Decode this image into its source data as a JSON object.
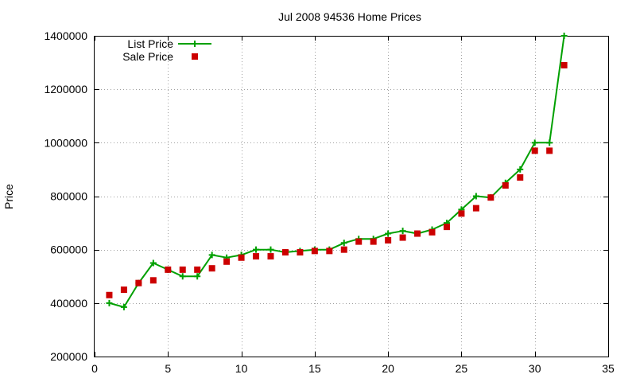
{
  "chart_data": {
    "type": "line",
    "title": "Jul 2008 94536 Home Prices",
    "xlabel": "",
    "ylabel": "Price",
    "xlim": [
      0,
      35
    ],
    "ylim": [
      200000,
      1400000
    ],
    "xticks": [
      0,
      5,
      10,
      15,
      20,
      25,
      30,
      35
    ],
    "yticks": [
      200000,
      400000,
      600000,
      800000,
      1000000,
      1200000,
      1400000
    ],
    "xtick_labels": [
      "0",
      "5",
      "10",
      "15",
      "20",
      "25",
      "30",
      "35"
    ],
    "ytick_labels": [
      "200000",
      "400000",
      "600000",
      "800000",
      "1000000",
      "1200000",
      "1400000"
    ],
    "grid": true,
    "legend_position": "top-left",
    "x": [
      1,
      2,
      3,
      4,
      5,
      6,
      7,
      8,
      9,
      10,
      11,
      12,
      13,
      14,
      15,
      16,
      17,
      18,
      19,
      20,
      21,
      22,
      23,
      24,
      25,
      26,
      27,
      28,
      29,
      30,
      31,
      32
    ],
    "series": [
      {
        "name": "List Price",
        "style": "line-plus",
        "color": "#00a000",
        "values": [
          400000,
          385000,
          475000,
          550000,
          525000,
          500000,
          500000,
          580000,
          570000,
          580000,
          600000,
          600000,
          590000,
          595000,
          600000,
          600000,
          625000,
          640000,
          640000,
          660000,
          670000,
          660000,
          675000,
          700000,
          750000,
          800000,
          795000,
          850000,
          900000,
          1000000,
          1000000,
          1400000
        ]
      },
      {
        "name": "Sale Price",
        "style": "square-marker",
        "color": "#cc0000",
        "values": [
          430000,
          450000,
          475000,
          485000,
          525000,
          525000,
          525000,
          530000,
          555000,
          570000,
          575000,
          575000,
          590000,
          590000,
          595000,
          595000,
          600000,
          630000,
          630000,
          635000,
          645000,
          660000,
          665000,
          685000,
          735000,
          755000,
          795000,
          840000,
          870000,
          970000,
          970000,
          1290000
        ]
      }
    ]
  }
}
